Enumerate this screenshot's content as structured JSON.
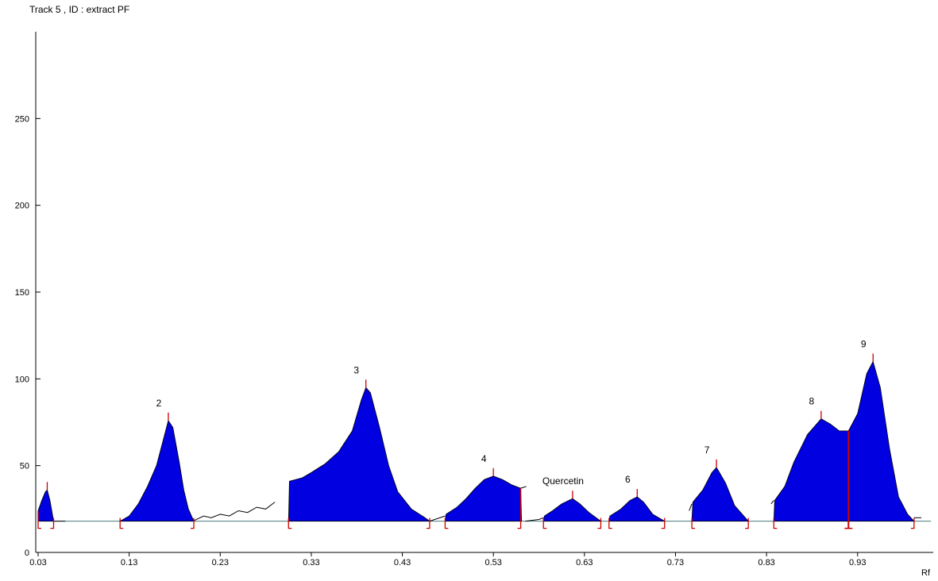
{
  "title": "Track 5 , ID : extract PF",
  "chart_data": {
    "type": "area",
    "title": "Track 5 , ID : extract PF",
    "xlabel": "Rf",
    "ylabel": "",
    "xlim": [
      0.03,
      1.0
    ],
    "ylim": [
      0,
      300
    ],
    "x_ticks": [
      "0.03",
      "0.13",
      "0.23",
      "0.33",
      "0.43",
      "0.53",
      "0.63",
      "0.73",
      "0.83",
      "0.93"
    ],
    "y_ticks": [
      "0",
      "50",
      "100",
      "150",
      "200",
      "250"
    ],
    "baseline": 18,
    "fill_color": "#0000e0",
    "marker_color": "#cc0000",
    "peaks": [
      {
        "label": "",
        "start": 0.03,
        "end": 0.047,
        "apex_rf": 0.04,
        "apex_height": 36,
        "profile": [
          [
            0.03,
            24
          ],
          [
            0.034,
            30
          ],
          [
            0.038,
            35
          ],
          [
            0.04,
            36
          ],
          [
            0.043,
            30
          ],
          [
            0.047,
            18
          ]
        ]
      },
      {
        "label": "2",
        "start": 0.12,
        "end": 0.201,
        "apex_rf": 0.173,
        "apex_height": 76,
        "profile": [
          [
            0.12,
            18
          ],
          [
            0.13,
            21
          ],
          [
            0.14,
            28
          ],
          [
            0.15,
            38
          ],
          [
            0.16,
            50
          ],
          [
            0.168,
            66
          ],
          [
            0.173,
            76
          ],
          [
            0.178,
            72
          ],
          [
            0.185,
            52
          ],
          [
            0.19,
            36
          ],
          [
            0.195,
            25
          ],
          [
            0.201,
            18
          ]
        ]
      },
      {
        "label": "3",
        "start": 0.305,
        "end": 0.46,
        "apex_rf": 0.39,
        "apex_height": 95,
        "profile": [
          [
            0.305,
            18
          ],
          [
            0.306,
            41
          ],
          [
            0.32,
            43
          ],
          [
            0.33,
            46
          ],
          [
            0.345,
            51
          ],
          [
            0.36,
            58
          ],
          [
            0.375,
            70
          ],
          [
            0.385,
            88
          ],
          [
            0.39,
            95
          ],
          [
            0.395,
            92
          ],
          [
            0.405,
            72
          ],
          [
            0.415,
            50
          ],
          [
            0.425,
            35
          ],
          [
            0.44,
            25
          ],
          [
            0.455,
            20
          ],
          [
            0.46,
            18
          ]
        ]
      },
      {
        "label": "4",
        "start": 0.477,
        "end": 0.56,
        "apex_rf": 0.53,
        "apex_height": 44,
        "profile": [
          [
            0.477,
            18
          ],
          [
            0.478,
            22
          ],
          [
            0.49,
            26
          ],
          [
            0.5,
            31
          ],
          [
            0.51,
            37
          ],
          [
            0.52,
            42
          ],
          [
            0.53,
            44
          ],
          [
            0.54,
            42
          ],
          [
            0.55,
            39
          ],
          [
            0.56,
            37
          ],
          [
            0.561,
            18
          ]
        ]
      },
      {
        "label": "Quercetin",
        "start": 0.585,
        "end": 0.648,
        "apex_rf": 0.617,
        "apex_height": 31,
        "profile": [
          [
            0.585,
            18
          ],
          [
            0.586,
            21
          ],
          [
            0.595,
            24
          ],
          [
            0.605,
            28
          ],
          [
            0.617,
            31
          ],
          [
            0.625,
            28
          ],
          [
            0.635,
            23
          ],
          [
            0.648,
            18
          ]
        ]
      },
      {
        "label": "6",
        "start": 0.657,
        "end": 0.718,
        "apex_rf": 0.688,
        "apex_height": 32,
        "profile": [
          [
            0.657,
            18
          ],
          [
            0.658,
            21
          ],
          [
            0.67,
            25
          ],
          [
            0.68,
            30
          ],
          [
            0.688,
            32
          ],
          [
            0.695,
            29
          ],
          [
            0.705,
            22
          ],
          [
            0.718,
            18
          ]
        ]
      },
      {
        "label": "7",
        "start": 0.748,
        "end": 0.81,
        "apex_rf": 0.775,
        "apex_height": 49,
        "profile": [
          [
            0.748,
            18
          ],
          [
            0.749,
            29
          ],
          [
            0.76,
            36
          ],
          [
            0.77,
            46
          ],
          [
            0.775,
            49
          ],
          [
            0.785,
            40
          ],
          [
            0.795,
            27
          ],
          [
            0.81,
            18
          ]
        ]
      },
      {
        "label": "8",
        "start": 0.838,
        "end": 0.92,
        "apex_rf": 0.89,
        "apex_height": 77,
        "profile": [
          [
            0.838,
            18
          ],
          [
            0.839,
            30
          ],
          [
            0.85,
            38
          ],
          [
            0.86,
            52
          ],
          [
            0.875,
            68
          ],
          [
            0.89,
            77
          ],
          [
            0.9,
            74
          ],
          [
            0.91,
            70
          ],
          [
            0.92,
            70
          ]
        ]
      },
      {
        "label": "9",
        "start": 0.92,
        "end": 0.992,
        "apex_rf": 0.947,
        "apex_height": 110,
        "profile": [
          [
            0.92,
            70
          ],
          [
            0.93,
            80
          ],
          [
            0.94,
            103
          ],
          [
            0.947,
            110
          ],
          [
            0.955,
            95
          ],
          [
            0.965,
            60
          ],
          [
            0.975,
            32
          ],
          [
            0.985,
            22
          ],
          [
            0.992,
            18
          ]
        ]
      }
    ],
    "gaps": [
      [
        [
          0.047,
          18
        ],
        [
          0.06,
          18
        ]
      ],
      [
        [
          0.2,
          18
        ],
        [
          0.212,
          21
        ],
        [
          0.22,
          20
        ],
        [
          0.23,
          22
        ],
        [
          0.24,
          21
        ],
        [
          0.25,
          24
        ],
        [
          0.26,
          23
        ],
        [
          0.27,
          26
        ],
        [
          0.28,
          25
        ],
        [
          0.29,
          29
        ]
      ],
      [
        [
          0.46,
          18
        ],
        [
          0.477,
          21
        ]
      ],
      [
        [
          0.56,
          37
        ],
        [
          0.566,
          38
        ]
      ],
      [
        [
          0.565,
          18
        ],
        [
          0.58,
          19
        ],
        [
          0.585,
          20
        ]
      ],
      [
        [
          0.745,
          24
        ],
        [
          0.748,
          28
        ]
      ],
      [
        [
          0.835,
          28
        ],
        [
          0.838,
          30
        ]
      ],
      [
        [
          0.992,
          20
        ],
        [
          1.0,
          20
        ]
      ]
    ]
  }
}
